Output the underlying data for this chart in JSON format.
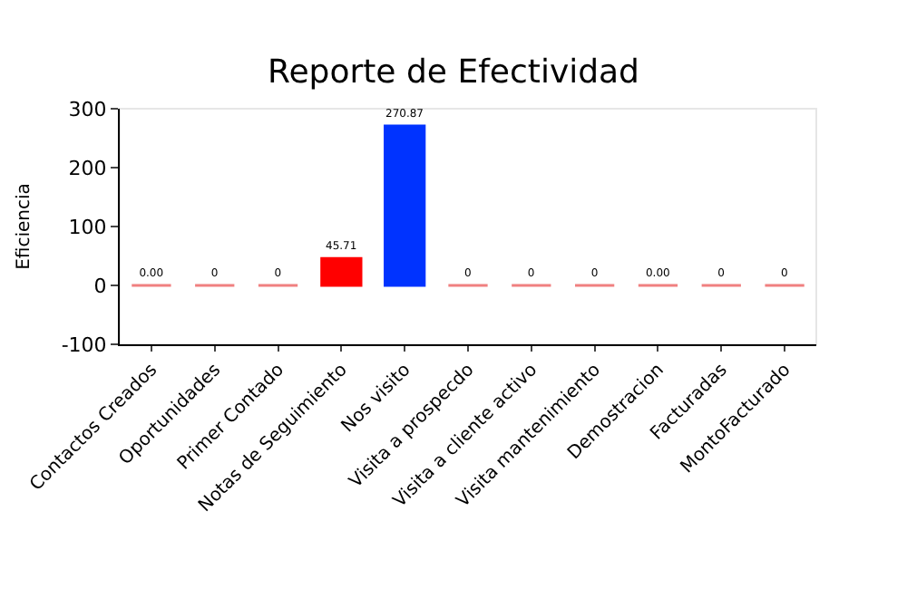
{
  "chart_data": {
    "type": "bar",
    "title": "Reporte de Efectividad",
    "ylabel": "Eficiencia",
    "categories": [
      "Contactos Creados",
      "Oportunidades",
      "Primer Contado",
      "Notas de Seguimiento",
      "Nos visito",
      "Visita a prospecdo",
      "Visita a cliente activo",
      "Visita mantenimiento",
      "Demostracion",
      "Facturadas",
      "MontoFacturado"
    ],
    "values": [
      0,
      0,
      0,
      45.71,
      270.87,
      0,
      0,
      0,
      0,
      0,
      0
    ],
    "value_labels": [
      "0.00",
      "0",
      "0",
      "45.71",
      "270.87",
      "0",
      "0",
      "0",
      "0.00",
      "0",
      "0"
    ],
    "colors": [
      "#f08080",
      "#f08080",
      "#f08080",
      "#ff0000",
      "#0033ff",
      "#f08080",
      "#f08080",
      "#f08080",
      "#f08080",
      "#f08080",
      "#f08080"
    ],
    "ylim": [
      -100,
      300
    ],
    "yticks": [
      -100,
      0,
      100,
      200,
      300
    ]
  }
}
